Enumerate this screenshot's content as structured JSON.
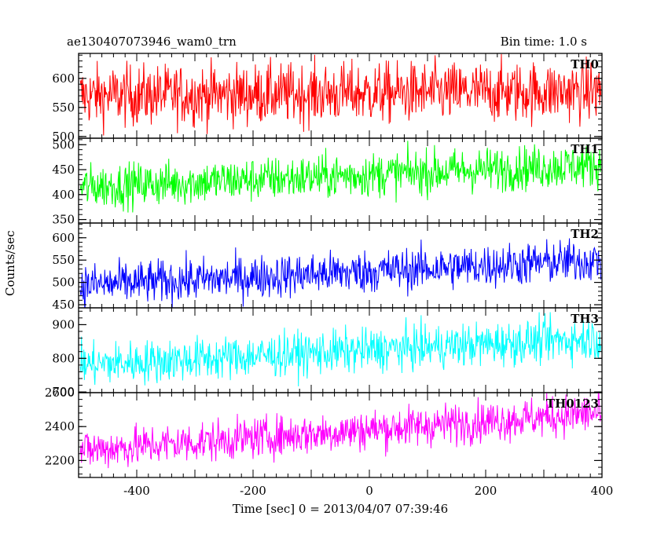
{
  "header": {
    "title": "ae130407073946_wam0_trn",
    "bin_time": "Bin time: 1.0 s"
  },
  "axes": {
    "ylabel": "Counts/sec",
    "xlabel": "Time [sec] 0 = 2013/04/07 07:39:46"
  },
  "chart_data": {
    "type": "line",
    "xlim": [
      -500,
      400
    ],
    "x_ticks": [
      -400,
      -200,
      0,
      200,
      400
    ],
    "panels": [
      {
        "name": "TH0",
        "color": "#ff0000",
        "ylim": [
          497,
          643
        ],
        "y_ticks": [
          500,
          550,
          600
        ],
        "mean_start": 570,
        "mean_end": 578,
        "noise": 26
      },
      {
        "name": "TH1",
        "color": "#00ff00",
        "ylim": [
          343,
          513
        ],
        "y_ticks": [
          350,
          400,
          450,
          500
        ],
        "mean_start": 415,
        "mean_end": 460,
        "noise": 22
      },
      {
        "name": "TH2",
        "color": "#0000ff",
        "ylim": [
          443,
          633
        ],
        "y_ticks": [
          450,
          500,
          550,
          600
        ],
        "mean_start": 493,
        "mean_end": 550,
        "noise": 24
      },
      {
        "name": "TH3",
        "color": "#00ffff",
        "ylim": [
          698,
          950
        ],
        "y_ticks": [
          700,
          800,
          900
        ],
        "mean_start": 780,
        "mean_end": 860,
        "noise": 32
      },
      {
        "name": "TH0123",
        "color": "#ff00ff",
        "ylim": [
          2100,
          2600
        ],
        "y_ticks": [
          2200,
          2400,
          2600
        ],
        "mean_start": 2260,
        "mean_end": 2480,
        "noise": 60
      }
    ]
  }
}
